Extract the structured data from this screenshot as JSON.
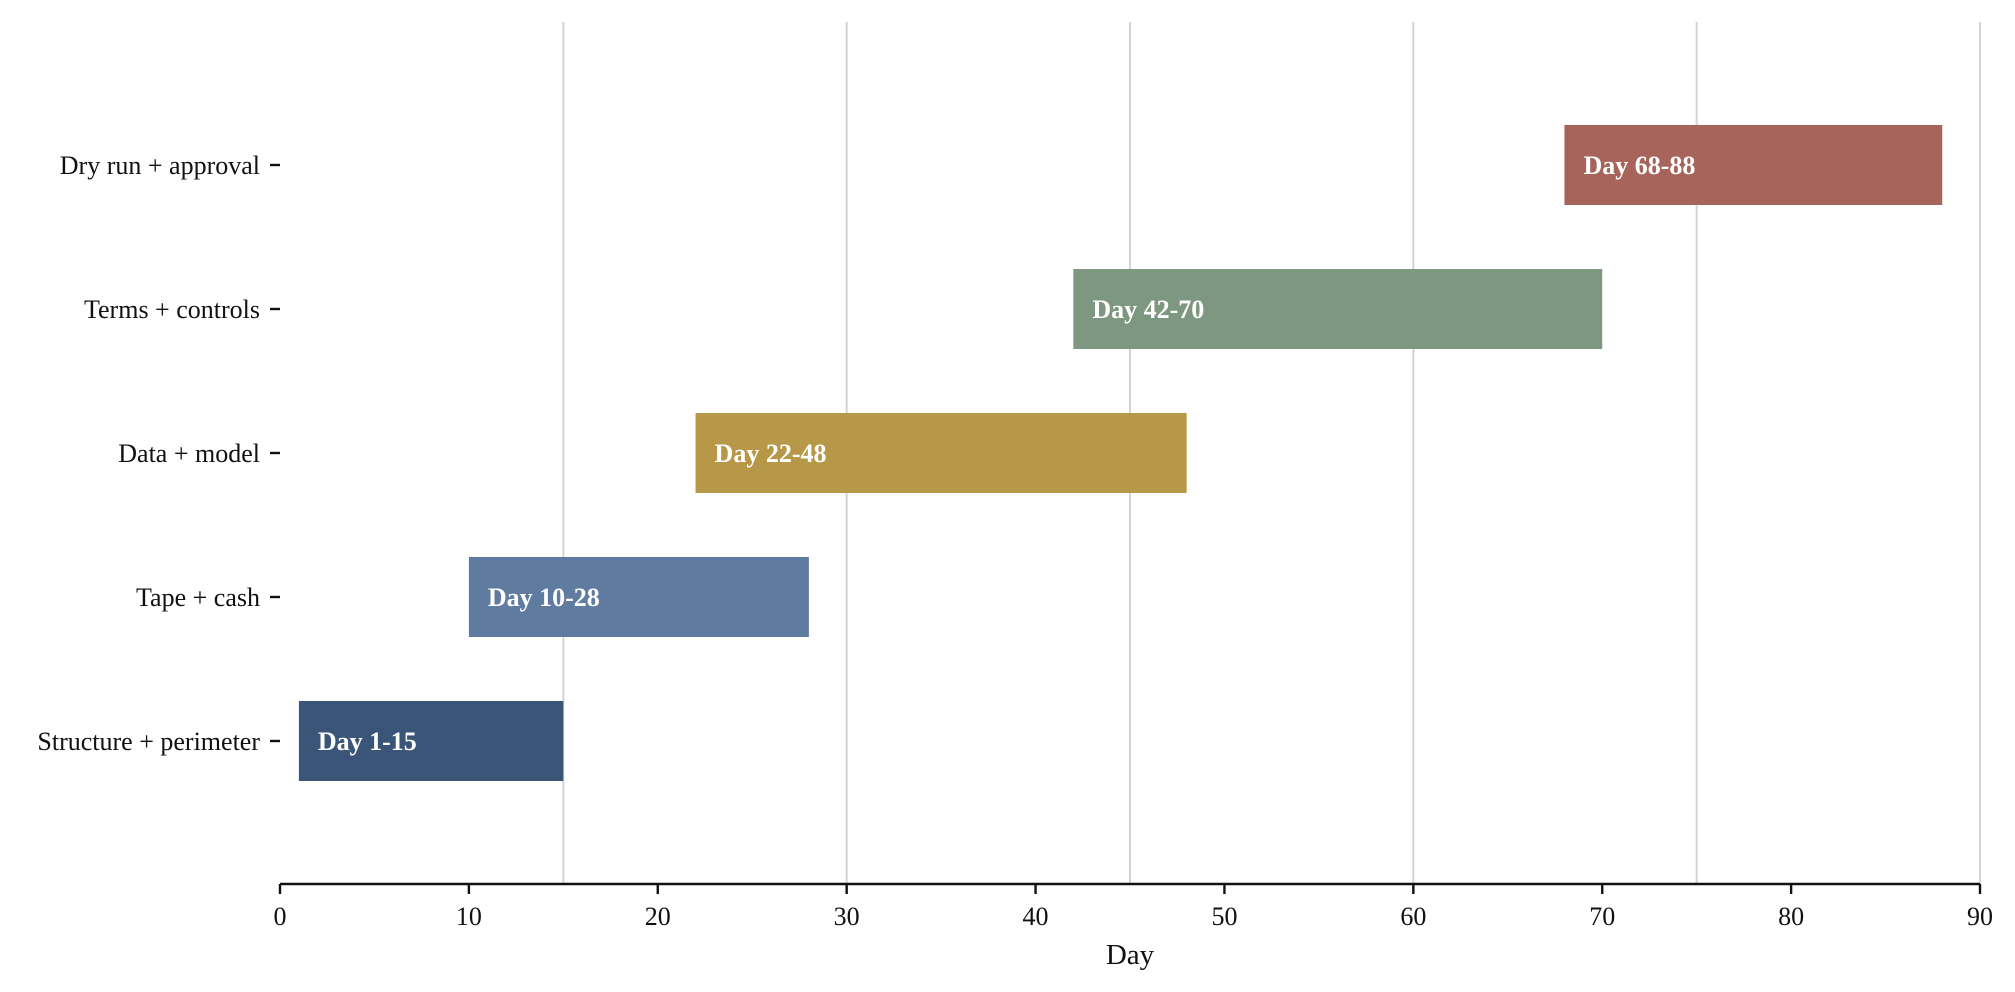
{
  "chart_data": {
    "type": "bar",
    "orientation": "horizontal-gantt",
    "xlabel": "Day",
    "ylabel": "",
    "title": "",
    "xlim": [
      0,
      90
    ],
    "xticks": [
      0,
      10,
      20,
      30,
      40,
      50,
      60,
      70,
      80,
      90
    ],
    "grid": {
      "axis": "x",
      "values": [
        15,
        30,
        45,
        60,
        75,
        90
      ]
    },
    "categories": [
      "Structure + perimeter",
      "Tape + cash",
      "Data + model",
      "Terms + controls",
      "Dry run + approval"
    ],
    "tasks": [
      {
        "name": "Structure + perimeter",
        "start": 1,
        "end": 15,
        "label": "Day 1-15",
        "color": "#3b5579"
      },
      {
        "name": "Tape + cash",
        "start": 10,
        "end": 28,
        "label": "Day 10-28",
        "color": "#5f7ba0"
      },
      {
        "name": "Data + model",
        "start": 22,
        "end": 48,
        "label": "Day 22-48",
        "color": "#b79848"
      },
      {
        "name": "Terms + controls",
        "start": 42,
        "end": 70,
        "label": "Day 42-70",
        "color": "#7e9781"
      },
      {
        "name": "Dry run + approval",
        "start": 68,
        "end": 88,
        "label": "Day 68-88",
        "color": "#a6645b"
      }
    ]
  }
}
